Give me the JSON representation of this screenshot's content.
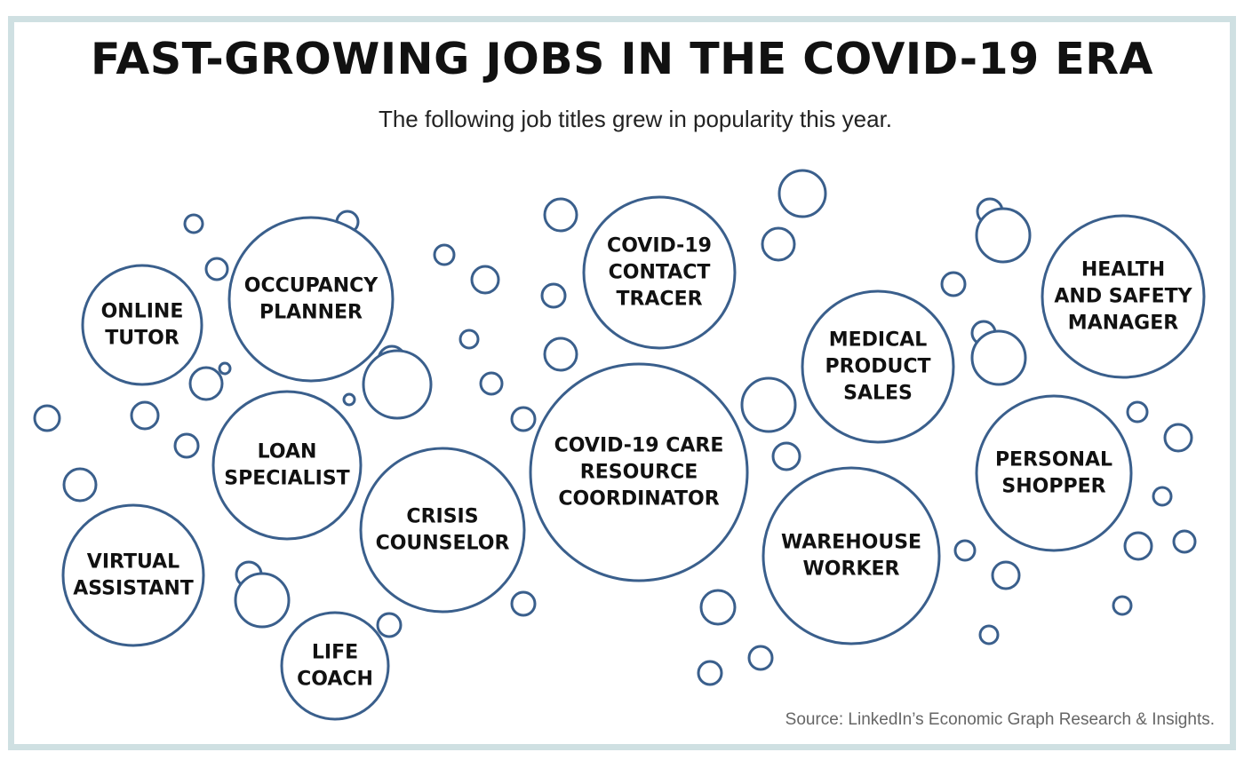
{
  "title": "FAST-GROWING JOBS IN THE COVID-19 ERA",
  "subtitle": "The following job titles grew in popularity this year.",
  "source": "Source: LinkedIn’s Economic Graph Research & Insights.",
  "colors": {
    "bubble_stroke": "#3a5f8c",
    "frame": "#cfe0e2",
    "text": "#111111"
  },
  "jobs": [
    {
      "id": "online-tutor",
      "lines": [
        "ONLINE",
        "TUTOR"
      ]
    },
    {
      "id": "occupancy-planner",
      "lines": [
        "OCCUPANCY",
        "PLANNER"
      ]
    },
    {
      "id": "loan-specialist",
      "lines": [
        "LOAN",
        "SPECIALIST"
      ]
    },
    {
      "id": "virtual-assistant",
      "lines": [
        "VIRTUAL",
        "ASSISTANT"
      ]
    },
    {
      "id": "life-coach",
      "lines": [
        "LIFE",
        "COACH"
      ]
    },
    {
      "id": "crisis-counselor",
      "lines": [
        "CRISIS",
        "COUNSELOR"
      ]
    },
    {
      "id": "covid-19-contact-tracer",
      "lines": [
        "COVID-19",
        "CONTACT",
        "TRACER"
      ]
    },
    {
      "id": "covid-19-care-resource-coordinator",
      "lines": [
        "COVID-19 CARE",
        "RESOURCE",
        "COORDINATOR"
      ]
    },
    {
      "id": "medical-product-sales",
      "lines": [
        "MEDICAL",
        "PRODUCT",
        "SALES"
      ]
    },
    {
      "id": "warehouse-worker",
      "lines": [
        "WAREHOUSE",
        "WORKER"
      ]
    },
    {
      "id": "health-and-safety-manager",
      "lines": [
        "HEALTH",
        "AND SAFETY",
        "MANAGER"
      ]
    },
    {
      "id": "personal-shopper",
      "lines": [
        "PERSONAL",
        "SHOPPER"
      ]
    }
  ]
}
